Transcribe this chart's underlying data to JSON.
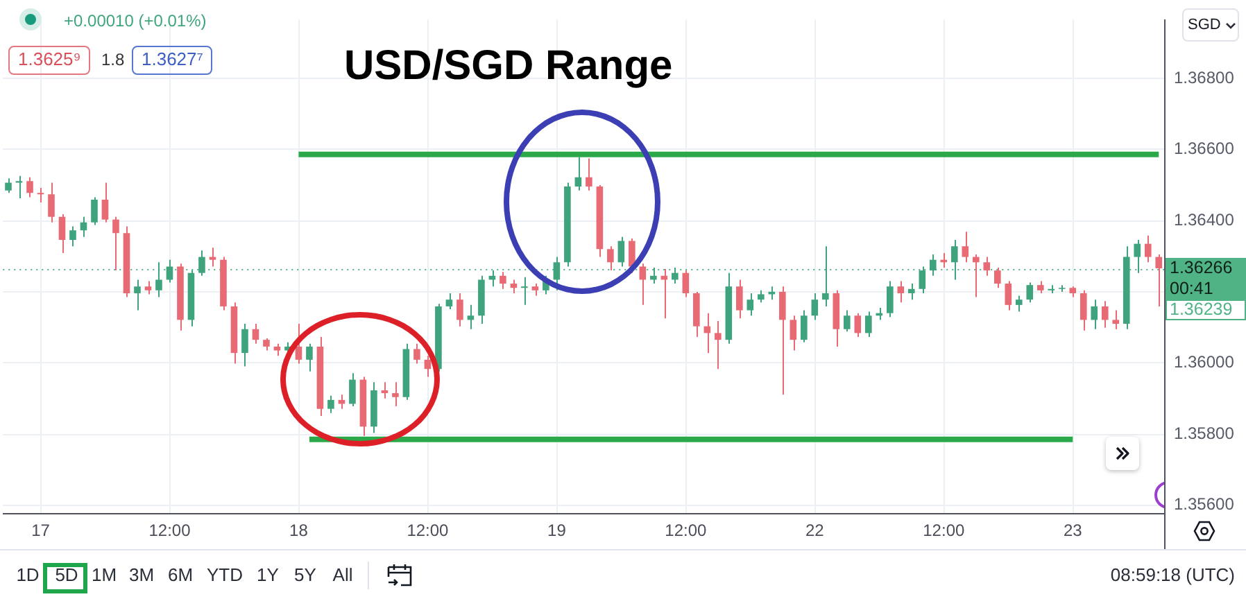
{
  "chart_data": {
    "type": "candlestick",
    "title": "USD/SGD Range",
    "categories": [
      null,
      null,
      null,
      "17",
      null,
      null,
      null,
      null,
      null,
      null,
      null,
      null,
      null,
      null,
      null,
      "12:00",
      null,
      null,
      null,
      null,
      null,
      null,
      null,
      null,
      null,
      null,
      null,
      "18",
      null,
      null,
      null,
      null,
      null,
      null,
      null,
      null,
      null,
      null,
      null,
      "12:00",
      null,
      null,
      null,
      null,
      null,
      null,
      null,
      null,
      null,
      null,
      null,
      "19",
      null,
      null,
      null,
      null,
      null,
      null,
      null,
      null,
      null,
      null,
      null,
      "12:00",
      null,
      null,
      null,
      null,
      null,
      null,
      null,
      null,
      null,
      null,
      null,
      "22",
      null,
      null,
      null,
      null,
      null,
      null,
      null,
      null,
      null,
      null,
      null,
      "12:00",
      null,
      null,
      null,
      null,
      null,
      null,
      null,
      null,
      null,
      null,
      null,
      "23",
      null,
      null,
      null,
      null,
      null,
      null,
      null,
      null
    ],
    "ohlc": [
      [
        1.36485,
        1.36519,
        1.36478,
        1.36507
      ],
      [
        1.36507,
        1.36526,
        1.36463,
        1.36511
      ],
      [
        1.36511,
        1.36522,
        1.36466,
        1.36478
      ],
      [
        1.36478,
        1.36492,
        1.36451,
        1.36474
      ],
      [
        1.36474,
        1.36507,
        1.36395,
        1.36411
      ],
      [
        1.36411,
        1.36418,
        1.36309,
        1.36346
      ],
      [
        1.36346,
        1.36384,
        1.36328,
        1.36373
      ],
      [
        1.36373,
        1.36411,
        1.36354,
        1.36395
      ],
      [
        1.36395,
        1.36466,
        1.36388,
        1.36459
      ],
      [
        1.36459,
        1.36507,
        1.36395,
        1.36403
      ],
      [
        1.36403,
        1.36411,
        1.3626,
        1.36365
      ],
      [
        1.36365,
        1.36384,
        1.36185,
        1.36196
      ],
      [
        1.36196,
        1.36234,
        1.36148,
        1.36215
      ],
      [
        1.36215,
        1.3623,
        1.36193,
        1.36204
      ],
      [
        1.36204,
        1.36283,
        1.36185,
        1.36234
      ],
      [
        1.36234,
        1.3629,
        1.36226,
        1.36271
      ],
      [
        1.36271,
        1.36279,
        1.36091,
        1.36121
      ],
      [
        1.36121,
        1.3626,
        1.36103,
        1.36253
      ],
      [
        1.36253,
        1.36316,
        1.36245,
        1.36298
      ],
      [
        1.36298,
        1.36324,
        1.36271,
        1.3629
      ],
      [
        1.3629,
        1.36298,
        1.36148,
        1.36159
      ],
      [
        1.36159,
        1.3617,
        1.35998,
        1.36028
      ],
      [
        1.36028,
        1.3611,
        1.3599,
        1.36095
      ],
      [
        1.36095,
        1.3611,
        1.36054,
        1.36065
      ],
      [
        1.36065,
        1.36069,
        1.36035,
        1.36046
      ],
      [
        1.36046,
        1.36054,
        1.3602,
        1.36035
      ],
      [
        1.36035,
        1.36058,
        1.36028,
        1.36046
      ],
      [
        1.36046,
        1.3611,
        1.35998,
        1.36009
      ],
      [
        1.36009,
        1.36054,
        1.35976,
        1.36046
      ],
      [
        1.36046,
        1.36073,
        1.35851,
        1.35871
      ],
      [
        1.35871,
        1.35908,
        1.35859,
        1.35896
      ],
      [
        1.35896,
        1.35911,
        1.35871,
        1.35885
      ],
      [
        1.35885,
        1.35971,
        1.35878,
        1.35953
      ],
      [
        1.35953,
        1.35961,
        1.35795,
        1.35821
      ],
      [
        1.35821,
        1.35946,
        1.35803,
        1.35923
      ],
      [
        1.35923,
        1.35946,
        1.359,
        1.35915
      ],
      [
        1.35915,
        1.35946,
        1.35878,
        1.35904
      ],
      [
        1.35904,
        1.36054,
        1.35896,
        1.36039
      ],
      [
        1.36039,
        1.36054,
        1.35998,
        1.36009
      ],
      [
        1.36009,
        1.3602,
        1.35961,
        1.35983
      ],
      [
        1.35983,
        1.36166,
        1.35976,
        1.36159
      ],
      [
        1.36159,
        1.36196,
        1.36151,
        1.36178
      ],
      [
        1.36178,
        1.36196,
        1.36103,
        1.36121
      ],
      [
        1.36121,
        1.36163,
        1.36095,
        1.36133
      ],
      [
        1.36133,
        1.36245,
        1.3611,
        1.36234
      ],
      [
        1.36234,
        1.3626,
        1.36215,
        1.36245
      ],
      [
        1.36245,
        1.36256,
        1.36208,
        1.36223
      ],
      [
        1.36223,
        1.36234,
        1.36196,
        1.36211
      ],
      [
        1.36211,
        1.36241,
        1.36163,
        1.36215
      ],
      [
        1.36215,
        1.36223,
        1.36189,
        1.36204
      ],
      [
        1.36204,
        1.36245,
        1.36193,
        1.36234
      ],
      [
        1.36234,
        1.36298,
        1.36204,
        1.36283
      ],
      [
        1.36283,
        1.36507,
        1.36271,
        1.36496
      ],
      [
        1.36496,
        1.36579,
        1.36485,
        1.36522
      ],
      [
        1.36522,
        1.36575,
        1.36485,
        1.36496
      ],
      [
        1.36496,
        1.365,
        1.36298,
        1.3632
      ],
      [
        1.3632,
        1.36328,
        1.3626,
        1.36283
      ],
      [
        1.36283,
        1.36354,
        1.36271,
        1.36343
      ],
      [
        1.36343,
        1.3635,
        1.36253,
        1.36271
      ],
      [
        1.36271,
        1.36279,
        1.36163,
        1.36234
      ],
      [
        1.36234,
        1.36268,
        1.36223,
        1.36245
      ],
      [
        1.36245,
        1.36264,
        1.36125,
        1.36234
      ],
      [
        1.36234,
        1.36268,
        1.36223,
        1.36253
      ],
      [
        1.36253,
        1.3626,
        1.36185,
        1.36196
      ],
      [
        1.36196,
        1.362,
        1.36073,
        1.36103
      ],
      [
        1.36103,
        1.3614,
        1.36028,
        1.36084
      ],
      [
        1.36084,
        1.36118,
        1.35983,
        1.36065
      ],
      [
        1.36065,
        1.36253,
        1.36054,
        1.36215
      ],
      [
        1.36215,
        1.36234,
        1.36125,
        1.36148
      ],
      [
        1.36148,
        1.36196,
        1.36133,
        1.36178
      ],
      [
        1.36178,
        1.36204,
        1.3617,
        1.36193
      ],
      [
        1.36193,
        1.36215,
        1.36178,
        1.362
      ],
      [
        1.362,
        1.36215,
        1.35911,
        1.36121
      ],
      [
        1.36121,
        1.36133,
        1.36035,
        1.36065
      ],
      [
        1.36065,
        1.36148,
        1.36058,
        1.36133
      ],
      [
        1.36133,
        1.36196,
        1.36121,
        1.36178
      ],
      [
        1.36178,
        1.36328,
        1.36159,
        1.36196
      ],
      [
        1.36196,
        1.36204,
        1.36046,
        1.36095
      ],
      [
        1.36095,
        1.36148,
        1.36088,
        1.36133
      ],
      [
        1.36133,
        1.3614,
        1.36073,
        1.36084
      ],
      [
        1.36084,
        1.36144,
        1.36073,
        1.36133
      ],
      [
        1.36133,
        1.36155,
        1.36121,
        1.3614
      ],
      [
        1.3614,
        1.3623,
        1.36129,
        1.36215
      ],
      [
        1.36215,
        1.3623,
        1.3617,
        1.36196
      ],
      [
        1.36196,
        1.36223,
        1.36178,
        1.36208
      ],
      [
        1.36208,
        1.36271,
        1.36196,
        1.3626
      ],
      [
        1.3626,
        1.36305,
        1.36245,
        1.3629
      ],
      [
        1.3629,
        1.36309,
        1.36268,
        1.36283
      ],
      [
        1.36283,
        1.36346,
        1.36234,
        1.36328
      ],
      [
        1.36328,
        1.36369,
        1.36283,
        1.36298
      ],
      [
        1.36298,
        1.36305,
        1.36185,
        1.36283
      ],
      [
        1.36283,
        1.36298,
        1.36245,
        1.3626
      ],
      [
        1.3626,
        1.36268,
        1.36211,
        1.36223
      ],
      [
        1.36223,
        1.3623,
        1.36148,
        1.36163
      ],
      [
        1.36163,
        1.36189,
        1.36144,
        1.36178
      ],
      [
        1.36178,
        1.36226,
        1.3617,
        1.36219
      ],
      [
        1.36219,
        1.3623,
        1.36196,
        1.36204
      ],
      [
        1.36204,
        1.36219,
        1.36196,
        1.36208
      ],
      [
        1.36208,
        1.36219,
        1.362,
        1.36211
      ],
      [
        1.36211,
        1.36215,
        1.36185,
        1.36196
      ],
      [
        1.36196,
        1.36204,
        1.36091,
        1.36121
      ],
      [
        1.36121,
        1.36178,
        1.36095,
        1.36159
      ],
      [
        1.36159,
        1.36174,
        1.36099,
        1.36121
      ],
      [
        1.36121,
        1.36148,
        1.36095,
        1.3611
      ],
      [
        1.3611,
        1.36328,
        1.36095,
        1.36298
      ],
      [
        1.36298,
        1.36346,
        1.36253,
        1.36335
      ],
      [
        1.36335,
        1.36358,
        1.36283,
        1.36298
      ],
      [
        1.36298,
        1.36305,
        1.36159,
        1.36266
      ]
    ],
    "colors": [
      "#3fa37e",
      "#3fa37e",
      "#e86a74",
      "#e86a74",
      "#e86a74",
      "#e86a74",
      "#3fa37e",
      "#3fa37e",
      "#3fa37e",
      "#e86a74",
      "#e86a74",
      "#e86a74",
      "#3fa37e",
      "#e86a74",
      "#3fa37e",
      "#3fa37e",
      "#e86a74",
      "#3fa37e",
      "#3fa37e",
      "#e86a74",
      "#e86a74",
      "#e86a74",
      "#3fa37e",
      "#e86a74",
      "#e86a74",
      "#e86a74",
      "#3fa37e",
      "#e86a74",
      "#3fa37e",
      "#e86a74",
      "#3fa37e",
      "#e86a74",
      "#3fa37e",
      "#e86a74",
      "#3fa37e",
      "#e86a74",
      "#e86a74",
      "#3fa37e",
      "#e86a74",
      "#e86a74",
      "#3fa37e",
      "#3fa37e",
      "#e86a74",
      "#3fa37e",
      "#3fa37e",
      "#3fa37e",
      "#e86a74",
      "#e86a74",
      "#3fa37e",
      "#e86a74",
      "#3fa37e",
      "#3fa37e",
      "#3fa37e",
      "#3fa37e",
      "#e86a74",
      "#e86a74",
      "#e86a74",
      "#3fa37e",
      "#e86a74",
      "#e86a74",
      "#3fa37e",
      "#e86a74",
      "#3fa37e",
      "#e86a74",
      "#e86a74",
      "#e86a74",
      "#e86a74",
      "#3fa37e",
      "#e86a74",
      "#3fa37e",
      "#3fa37e",
      "#3fa37e",
      "#e86a74",
      "#e86a74",
      "#3fa37e",
      "#3fa37e",
      "#3fa37e",
      "#e86a74",
      "#3fa37e",
      "#e86a74",
      "#3fa37e",
      "#3fa37e",
      "#3fa37e",
      "#e86a74",
      "#3fa37e",
      "#3fa37e",
      "#3fa37e",
      "#e86a74",
      "#3fa37e",
      "#e86a74",
      "#e86a74",
      "#e86a74",
      "#e86a74",
      "#e86a74",
      "#3fa37e",
      "#3fa37e",
      "#e86a74",
      "#3fa37e",
      "#3fa37e",
      "#e86a74",
      "#e86a74",
      "#3fa37e",
      "#e86a74",
      "#e86a74",
      "#3fa37e",
      "#3fa37e",
      "#e86a74",
      "#e86a74"
    ],
    "series": [
      {
        "type": "line",
        "color": "#2aa84a",
        "values": [
          null,
          null,
          null,
          null,
          null,
          null,
          null,
          null,
          null,
          null,
          null,
          null,
          null,
          null,
          null,
          null,
          null,
          null,
          null,
          null,
          null,
          null,
          null,
          null,
          null,
          null,
          null,
          1.36586,
          1.36586,
          1.36586,
          1.36586,
          1.36586,
          1.36586,
          1.36586,
          1.36586,
          1.36586,
          1.36586,
          1.36586,
          1.36586,
          1.36586,
          1.36586,
          1.36586,
          1.36586,
          1.36586,
          1.36586,
          1.36586,
          1.36586,
          1.36586,
          1.36586,
          1.36586,
          1.36586,
          1.36586,
          1.36586,
          1.36586,
          1.36586,
          1.36586,
          1.36586,
          1.36586,
          1.36586,
          1.36586,
          1.36586,
          1.36586,
          1.36586,
          1.36586,
          1.36586,
          1.36586,
          1.36586,
          1.36586,
          1.36586,
          1.36586,
          1.36586,
          1.36586,
          1.36586,
          1.36586,
          1.36586,
          1.36586,
          1.36586,
          1.36586,
          1.36586,
          1.36586,
          1.36586,
          1.36586,
          1.36586,
          1.36586,
          1.36586,
          1.36586,
          1.36586,
          1.36586,
          1.36586,
          1.36586,
          1.36586,
          1.36586,
          1.36586,
          1.36586,
          1.36586,
          1.36586,
          1.36586,
          1.36586,
          1.36586,
          1.36586,
          1.36586,
          1.36586,
          1.36586,
          1.36586,
          1.36586,
          1.36586,
          1.36586,
          1.36586
        ]
      },
      {
        "type": "line",
        "color": "#2aa84a",
        "values": [
          null,
          null,
          null,
          null,
          null,
          null,
          null,
          null,
          null,
          null,
          null,
          null,
          null,
          null,
          null,
          null,
          null,
          null,
          null,
          null,
          null,
          null,
          null,
          null,
          null,
          null,
          null,
          null,
          1.35785,
          1.35785,
          1.35785,
          1.35785,
          1.35785,
          1.35785,
          1.35785,
          1.35785,
          1.35785,
          1.35785,
          1.35785,
          1.35785,
          1.35785,
          1.35785,
          1.35785,
          1.35785,
          1.35785,
          1.35785,
          1.35785,
          1.35785,
          1.35785,
          1.35785,
          1.35785,
          1.35785,
          1.35785,
          1.35785,
          1.35785,
          1.35785,
          1.35785,
          1.35785,
          1.35785,
          1.35785,
          1.35785,
          1.35785,
          1.35785,
          1.35785,
          1.35785,
          1.35785,
          1.35785,
          1.35785,
          1.35785,
          1.35785,
          1.35785,
          1.35785,
          1.35785,
          1.35785,
          1.35785,
          1.35785,
          1.35785,
          1.35785,
          1.35785,
          1.35785,
          1.35785,
          1.35785,
          1.35785,
          1.35785,
          1.35785,
          1.35785,
          1.35785,
          1.35785,
          1.35785,
          1.35785,
          1.35785,
          1.35785,
          1.35785,
          1.35785,
          1.35785,
          1.35785,
          1.35785,
          1.35785,
          1.35785,
          1.35785,
          null,
          null,
          null,
          null,
          null,
          null,
          null,
          null
        ]
      }
    ],
    "ylim": [
      1.35578,
      1.36965
    ],
    "yticks": [
      {
        "value": 1.356,
        "label": "1.35600"
      },
      {
        "value": 1.358,
        "label": "1.35800"
      },
      {
        "value": 1.36,
        "label": "1.36000"
      },
      {
        "value": 1.362,
        "label": null
      },
      {
        "value": 1.364,
        "label": "1.36400"
      },
      {
        "value": 1.366,
        "label": "1.36600"
      },
      {
        "value": 1.368,
        "label": "1.36800"
      }
    ],
    "grid": true,
    "ref_lines": [
      {
        "axis": "y",
        "value": 1.36266,
        "label": "1.36266",
        "color": "#4fb386",
        "line_style": "dotted"
      }
    ],
    "annotations": [
      "+0.00010 (+0.01%)",
      "1.3625⁹",
      "1.8",
      "1.3627⁷",
      "SGD",
      "1D",
      "5D",
      "1M",
      "3M",
      "6M",
      "YTD",
      "1Y",
      "5Y",
      "All",
      "08:59:18 (UTC)",
      "00:41",
      "1.36239"
    ]
  }
}
